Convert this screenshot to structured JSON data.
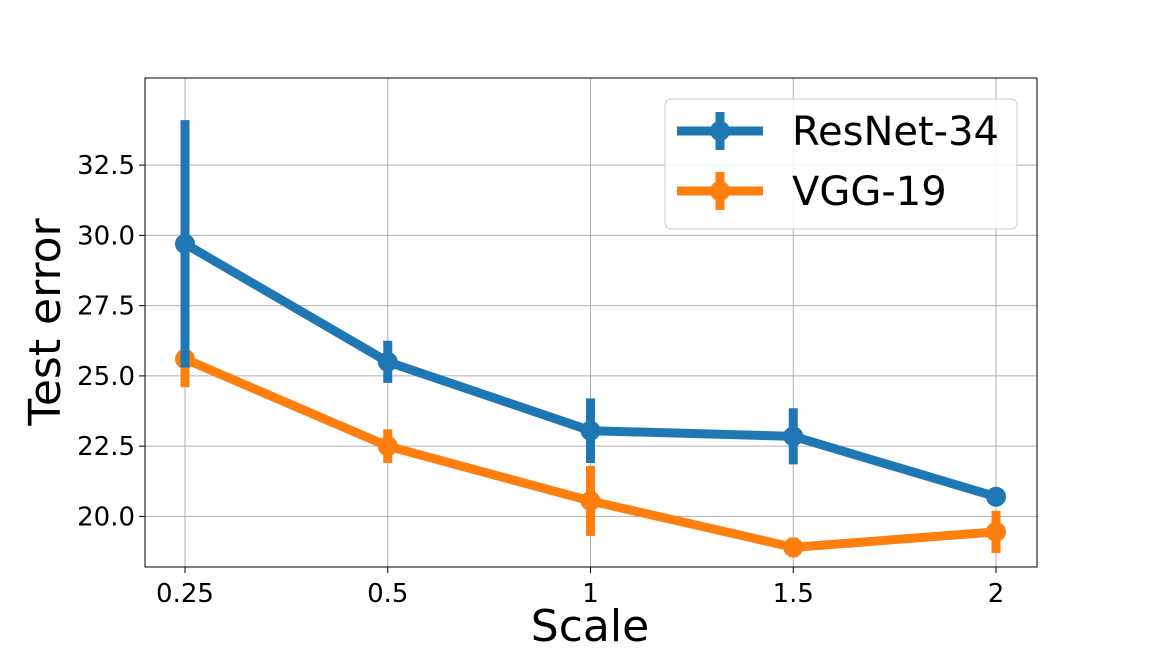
{
  "chart_data": {
    "type": "line",
    "categories": [
      "0.25",
      "0.5",
      "1",
      "1.5",
      "2"
    ],
    "series": [
      {
        "name": "ResNet-34",
        "color": "#1f77b4",
        "values": [
          29.7,
          25.5,
          23.05,
          22.85,
          20.7
        ],
        "error": [
          4.4,
          0.75,
          1.15,
          1.0,
          0.1
        ]
      },
      {
        "name": "VGG-19",
        "color": "#ff7f0e",
        "values": [
          25.6,
          22.5,
          20.55,
          18.9,
          19.45
        ],
        "error": [
          1.0,
          0.6,
          1.25,
          0.35,
          0.75
        ]
      }
    ],
    "xlabel": "Scale",
    "ylabel": "Test error",
    "yticks": [
      "20.0",
      "22.5",
      "25.0",
      "27.5",
      "30.0",
      "32.5"
    ],
    "ylim": [
      18.2,
      35.6
    ],
    "grid": true,
    "legend": "top-right"
  }
}
